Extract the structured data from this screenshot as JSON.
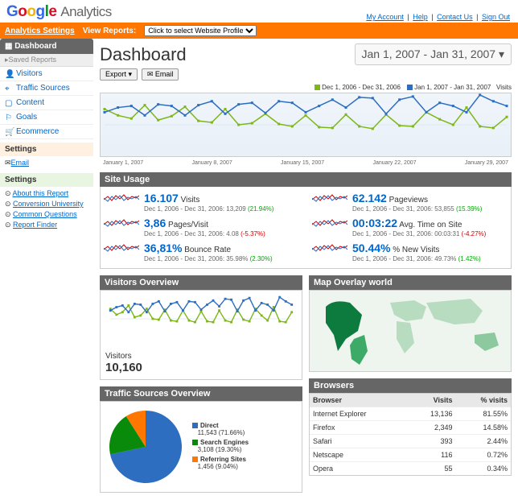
{
  "brand": {
    "product": "Analytics",
    "colors": {
      "blue": "#3369e8",
      "red": "#d50f25",
      "yellow": "#eeb211",
      "green": "#009925",
      "orange": "#ff7600",
      "series_green": "#7eb717",
      "series_blue": "#2d6ec0"
    }
  },
  "toplinks": [
    "My Account",
    "Help",
    "Contact Us",
    "Sign Out"
  ],
  "navbar": {
    "settings": "Analytics Settings",
    "viewreports": "View Reports:",
    "profile_placeholder": "Click to select Website Profile"
  },
  "sidebar": {
    "dashboard": "Dashboard",
    "saved": "▸Saved Reports",
    "items": [
      {
        "icon": "people",
        "label": "Visitors"
      },
      {
        "icon": "funnel",
        "label": "Traffic Sources"
      },
      {
        "icon": "page",
        "label": "Content"
      },
      {
        "icon": "flag",
        "label": "Goals"
      },
      {
        "icon": "cart",
        "label": "Ecommerce"
      }
    ],
    "settings_hdr": "Settings",
    "email": "Email",
    "help_hdr": "Settings",
    "help": [
      "About this Report",
      "Conversion University",
      "Common Questions",
      "Report Finder"
    ]
  },
  "page": {
    "title": "Dashboard",
    "daterange": "Jan 1, 2007 - Jan 31, 2007 ▾",
    "export": "Export ▾",
    "email": "✉ Email"
  },
  "legend": {
    "a": "Dec 1, 2006 - Dec 31, 2006",
    "b": "Jan 1, 2007 - Jan 31, 2007",
    "metric": "Visits"
  },
  "mainchart": {
    "ylim": [
      0,
      800
    ],
    "yticks": [
      400,
      800
    ],
    "green": [
      600,
      520,
      480,
      650,
      460,
      510,
      630,
      450,
      430,
      600,
      400,
      420,
      540,
      410,
      380,
      520,
      370,
      360,
      530,
      380,
      350,
      530,
      390,
      380,
      560,
      470,
      400,
      620,
      380,
      360,
      500
    ],
    "blue": [
      560,
      620,
      640,
      520,
      660,
      640,
      520,
      650,
      700,
      540,
      660,
      680,
      550,
      700,
      680,
      560,
      640,
      720,
      620,
      750,
      740,
      540,
      720,
      760,
      560,
      680,
      640,
      560,
      780,
      700,
      640
    ],
    "xlabels": [
      "January 1, 2007",
      "January 8, 2007",
      "January 15, 2007",
      "January 22, 2007",
      "January 29, 2007"
    ]
  },
  "siteusage": {
    "hdr": "Site Usage",
    "metrics": [
      {
        "value": "16.107",
        "label": "Visits",
        "sub": "Dec 1, 2006 - Dec 31, 2006: 13,209",
        "delta": "(21.94%)",
        "dir": "up"
      },
      {
        "value": "62.142",
        "label": "Pageviews",
        "sub": "Dec 1, 2006 - Dec 31, 2006: 53,855",
        "delta": "(15.39%)",
        "dir": "up"
      },
      {
        "value": "3,86",
        "label": "Pages/Visit",
        "sub": "Dec 1, 2006 - Dec 31, 2006: 4.08",
        "delta": "(-5.37%)",
        "dir": "dn"
      },
      {
        "value": "00:03:22",
        "label": "Avg. Time on Site",
        "sub": "Dec 1, 2006 - Dec 31, 2006: 00:03:31",
        "delta": "(-4.27%)",
        "dir": "dn"
      },
      {
        "value": "36,81%",
        "label": "Bounce Rate",
        "sub": "Dec 1, 2006 - Dec 31, 2006: 35.98%",
        "delta": "(2.30%)",
        "dir": "up"
      },
      {
        "value": "50.44%",
        "label": "% New Visits",
        "sub": "Dec 1, 2006 - Dec 31, 2006: 49.73%",
        "delta": "(1.42%)",
        "dir": "up"
      }
    ]
  },
  "visitors": {
    "hdr": "Visitors Overview",
    "label": "Visitors",
    "value": "10,160",
    "ylim": [
      0,
      600
    ],
    "yticks": [
      300,
      600
    ],
    "green": [
      420,
      350,
      380,
      460,
      320,
      340,
      420,
      300,
      290,
      410,
      280,
      270,
      400,
      280,
      260,
      390,
      270,
      260,
      400,
      280,
      260,
      410,
      290,
      270,
      420,
      340,
      280,
      440,
      270,
      260,
      380
    ],
    "blue": [
      400,
      440,
      460,
      380,
      480,
      470,
      380,
      480,
      510,
      390,
      480,
      500,
      400,
      510,
      500,
      410,
      470,
      520,
      450,
      540,
      530,
      390,
      520,
      550,
      400,
      490,
      470,
      400,
      560,
      510,
      470
    ]
  },
  "map": {
    "hdr": "Map Overlay world"
  },
  "traffic": {
    "hdr": "Traffic Sources Overview",
    "slices": [
      {
        "label": "Direct",
        "value": "11,543",
        "pct": "71.66%",
        "color": "#2d6ec0",
        "angle": 258
      },
      {
        "label": "Search Engines",
        "value": "3,108",
        "pct": "19.30%",
        "color": "#0a8a0a",
        "angle": 69.5
      },
      {
        "label": "Referring Sites",
        "value": "1,456",
        "pct": "9.04%",
        "color": "#ff7600",
        "angle": 32.5
      }
    ]
  },
  "browsers": {
    "hdr": "Browsers",
    "cols": [
      "Browser",
      "Visits",
      "% visits"
    ],
    "rows": [
      [
        "Internet Explorer",
        "13,136",
        "81.55%"
      ],
      [
        "Firefox",
        "2,349",
        "14.58%"
      ],
      [
        "Safari",
        "393",
        "2.44%"
      ],
      [
        "Netscape",
        "116",
        "0.72%"
      ],
      [
        "Opera",
        "55",
        "0.34%"
      ]
    ]
  }
}
